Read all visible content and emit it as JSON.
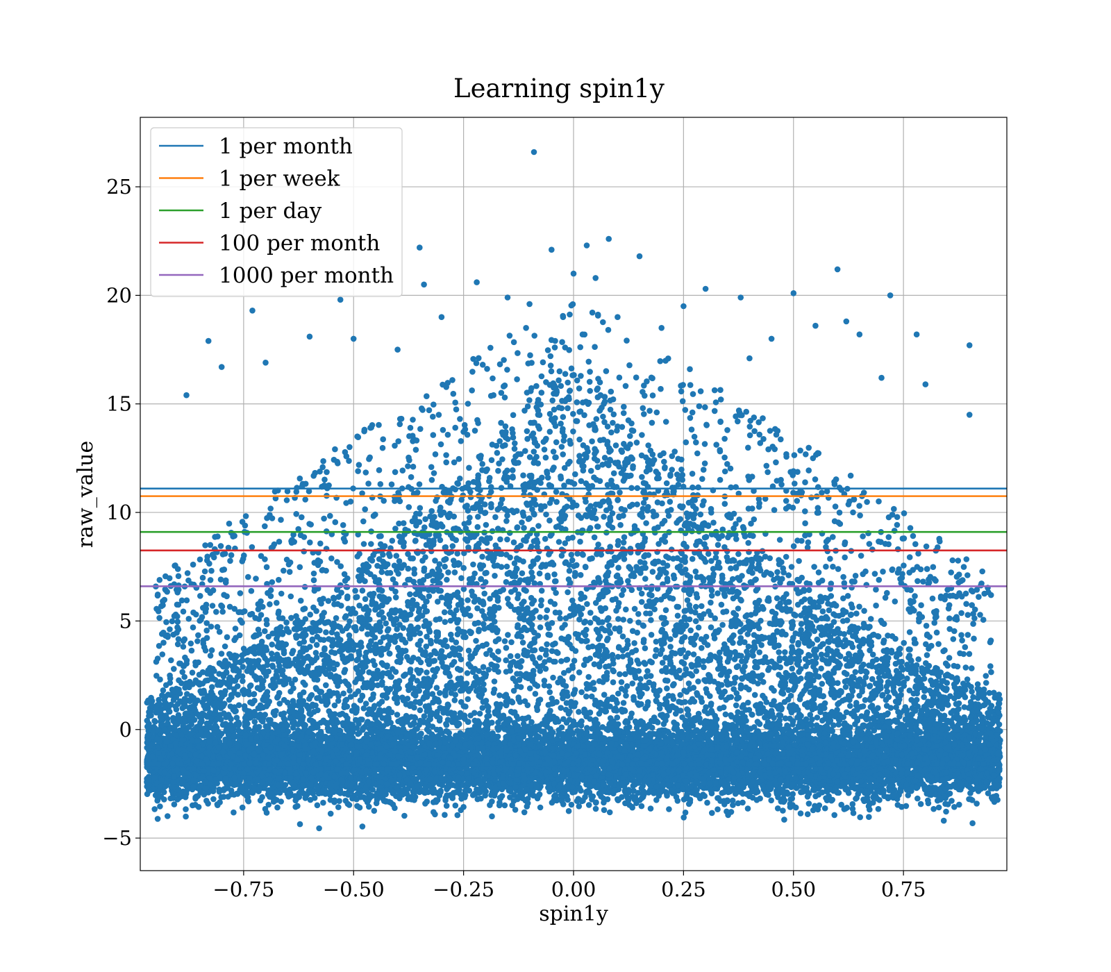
{
  "chart_data": {
    "type": "scatter",
    "title": "Learning spin1y",
    "xlabel": "spin1y",
    "ylabel": "raw_value",
    "xlim": [
      -0.985,
      0.985
    ],
    "ylim": [
      -6.5,
      28.2
    ],
    "xticks": [
      -0.75,
      -0.5,
      -0.25,
      0.0,
      0.25,
      0.5,
      0.75
    ],
    "xtick_labels": [
      "−0.75",
      "−0.50",
      "−0.25",
      "0.00",
      "0.25",
      "0.50",
      "0.75"
    ],
    "yticks": [
      -5,
      0,
      5,
      10,
      15,
      20,
      25
    ],
    "ytick_labels": [
      "−5",
      "0",
      "5",
      "10",
      "15",
      "20",
      "25"
    ],
    "grid": true,
    "legend_position": "upper-left",
    "scatter_series": {
      "color": "#1f77b4",
      "points": [
        [
          -0.09,
          26.6
        ],
        [
          0.08,
          22.6
        ],
        [
          0.03,
          22.3
        ],
        [
          -0.35,
          22.2
        ],
        [
          0.15,
          21.8
        ],
        [
          0.6,
          21.2
        ],
        [
          -0.05,
          22.1
        ],
        [
          0.0,
          21.0
        ],
        [
          -0.34,
          20.5
        ],
        [
          0.3,
          20.3
        ],
        [
          0.72,
          20.0
        ],
        [
          0.5,
          20.1
        ],
        [
          -0.73,
          19.3
        ],
        [
          0.38,
          19.9
        ],
        [
          -0.22,
          20.6
        ],
        [
          -0.53,
          19.8
        ],
        [
          0.62,
          18.8
        ],
        [
          0.9,
          17.7
        ],
        [
          0.78,
          18.2
        ],
        [
          -0.83,
          17.9
        ],
        [
          -0.88,
          15.4
        ],
        [
          0.9,
          14.5
        ],
        [
          -0.5,
          18.0
        ],
        [
          0.1,
          19.0
        ],
        [
          -0.1,
          19.6
        ],
        [
          0.2,
          18.5
        ],
        [
          -0.3,
          19.0
        ],
        [
          0.45,
          18.0
        ],
        [
          0.65,
          18.2
        ],
        [
          -0.6,
          18.1
        ],
        [
          0.25,
          19.5
        ],
        [
          0.55,
          18.6
        ],
        [
          -0.15,
          19.9
        ],
        [
          0.05,
          20.8
        ],
        [
          -0.4,
          17.5
        ],
        [
          0.4,
          17.1
        ],
        [
          -0.7,
          16.9
        ],
        [
          0.7,
          16.2
        ],
        [
          -0.8,
          16.7
        ],
        [
          0.8,
          15.9
        ]
      ],
      "envelope": {
        "core_center_x": 0.0,
        "upper_peak": 17.0,
        "upper_edge": 1.5,
        "lower_center": -1.6,
        "lower_spread": 1.4,
        "lower_floor": -4.9
      }
    },
    "series": [
      {
        "name": "1 per month",
        "color": "#1f77b4",
        "y": 11.1
      },
      {
        "name": "1 per week",
        "color": "#ff7f0e",
        "y": 10.75
      },
      {
        "name": "1 per day",
        "color": "#2ca02c",
        "y": 9.1
      },
      {
        "name": "100 per month",
        "color": "#d62728",
        "y": 8.25
      },
      {
        "name": "1000 per month",
        "color": "#9467bd",
        "y": 6.6
      }
    ]
  }
}
